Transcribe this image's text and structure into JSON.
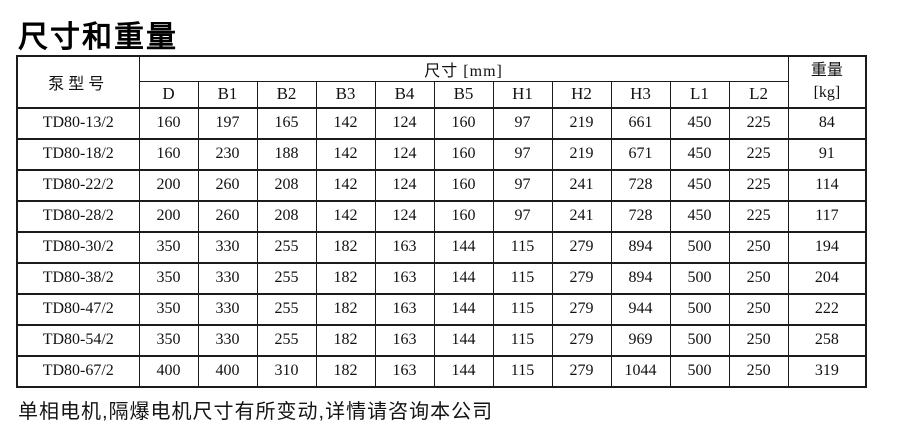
{
  "page": {
    "title": "尺寸和重量",
    "footnote": "单相电机,隔爆电机尺寸有所变动,详情请咨询本公司"
  },
  "table": {
    "pump_model_header": "泵型号",
    "dims_header": "尺寸 [mm]",
    "weight_header_line1": "重量",
    "weight_header_line2": "[kg]",
    "dim_columns": [
      "D",
      "B1",
      "B2",
      "B3",
      "B4",
      "B5",
      "H1",
      "H2",
      "H3",
      "L1",
      "L2"
    ],
    "rows": [
      {
        "model": "TD80-13/2",
        "values": [
          160,
          197,
          165,
          142,
          124,
          160,
          97,
          219,
          661,
          450,
          225
        ],
        "weight": 84
      },
      {
        "model": "TD80-18/2",
        "values": [
          160,
          230,
          188,
          142,
          124,
          160,
          97,
          219,
          671,
          450,
          225
        ],
        "weight": 91
      },
      {
        "model": "TD80-22/2",
        "values": [
          200,
          260,
          208,
          142,
          124,
          160,
          97,
          241,
          728,
          450,
          225
        ],
        "weight": 114
      },
      {
        "model": "TD80-28/2",
        "values": [
          200,
          260,
          208,
          142,
          124,
          160,
          97,
          241,
          728,
          450,
          225
        ],
        "weight": 117
      },
      {
        "model": "TD80-30/2",
        "values": [
          350,
          330,
          255,
          182,
          163,
          144,
          115,
          279,
          894,
          500,
          250
        ],
        "weight": 194
      },
      {
        "model": "TD80-38/2",
        "values": [
          350,
          330,
          255,
          182,
          163,
          144,
          115,
          279,
          894,
          500,
          250
        ],
        "weight": 204
      },
      {
        "model": "TD80-47/2",
        "values": [
          350,
          330,
          255,
          182,
          163,
          144,
          115,
          279,
          944,
          500,
          250
        ],
        "weight": 222
      },
      {
        "model": "TD80-54/2",
        "values": [
          350,
          330,
          255,
          182,
          163,
          144,
          115,
          279,
          969,
          500,
          250
        ],
        "weight": 258
      },
      {
        "model": "TD80-67/2",
        "values": [
          400,
          400,
          310,
          182,
          163,
          144,
          115,
          279,
          1044,
          500,
          250
        ],
        "weight": 319
      }
    ],
    "text_color": "#111111",
    "border_color": "#1b1b1b",
    "background_color": "#ffffff"
  }
}
